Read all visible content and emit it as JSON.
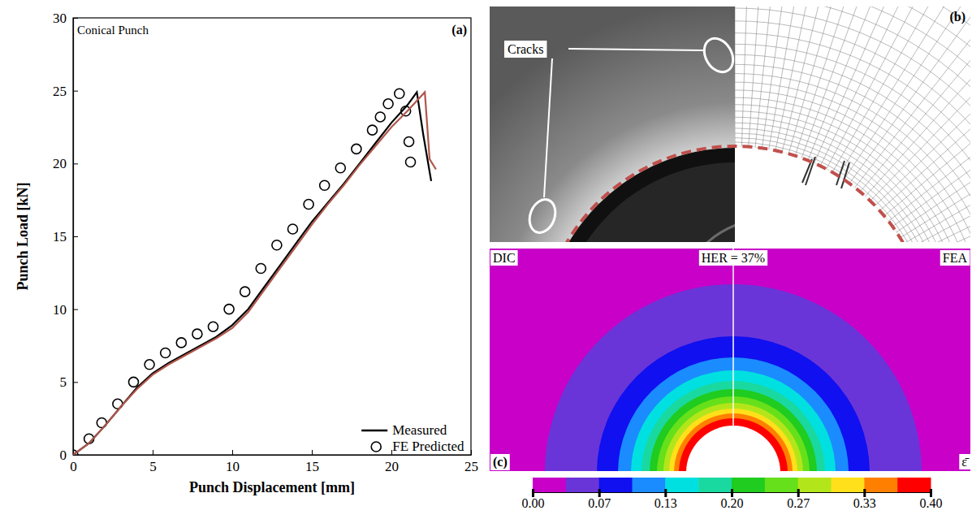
{
  "chart_data": [
    {
      "type": "line",
      "panel_label": "(a)",
      "title": "Conical Punch",
      "x_label": "Punch Displacement [mm]",
      "y_label": "Punch Load [kN]",
      "xlim": [
        0,
        25
      ],
      "xticks": [
        0,
        5,
        10,
        15,
        20,
        25
      ],
      "ylim": [
        0,
        30
      ],
      "yticks": [
        0,
        5,
        10,
        15,
        20,
        25,
        30
      ],
      "legend": "lower right",
      "series": [
        {
          "name": "Measured",
          "color": "#000000",
          "line_style": "solid",
          "x": [
            0,
            1,
            2,
            3,
            4,
            5,
            6,
            7,
            8,
            9,
            10,
            11,
            12,
            13,
            14,
            15,
            16,
            17,
            18,
            19,
            20,
            21,
            21.6,
            22,
            22.5
          ],
          "values": [
            0,
            0.8,
            2,
            3.3,
            4.6,
            5.6,
            6.3,
            6.9,
            7.5,
            8.1,
            8.9,
            10,
            11.5,
            13,
            14.5,
            16,
            17.3,
            18.6,
            20,
            21.4,
            22.8,
            24,
            24.9,
            22,
            18.8
          ]
        },
        {
          "name": "FE Predicted",
          "type": "scatter",
          "marker": "circle",
          "color": "#000000",
          "x": [
            0,
            1,
            1.8,
            2.8,
            3.8,
            4.8,
            5.8,
            6.8,
            7.8,
            8.8,
            9.8,
            10.8,
            11.8,
            12.8,
            13.8,
            14.8,
            15.8,
            16.8,
            17.8,
            18.8,
            19.3,
            19.8,
            20.5,
            20.9,
            21.1,
            21.2
          ],
          "values": [
            0,
            1.1,
            2.2,
            3.5,
            5,
            6.2,
            7,
            7.7,
            8.3,
            8.8,
            10,
            11.2,
            12.8,
            14.4,
            15.5,
            17.2,
            18.5,
            19.7,
            21,
            22.3,
            23.2,
            24.1,
            24.8,
            23.6,
            21.5,
            20.1
          ]
        },
        {
          "color": "#b0564c",
          "line_style": "solid",
          "x": [
            0,
            1,
            2,
            3,
            4,
            5,
            6,
            7,
            8,
            9,
            10,
            11,
            12,
            13,
            14,
            15,
            16,
            17,
            18,
            19,
            20,
            21,
            22.1,
            22.4,
            22.8
          ],
          "values": [
            0,
            0.8,
            2,
            3.3,
            4.5,
            5.5,
            6.2,
            6.8,
            7.4,
            8,
            8.7,
            9.8,
            11.3,
            12.8,
            14.3,
            15.8,
            17.2,
            18.5,
            19.9,
            21.2,
            22.5,
            23.6,
            24.9,
            20.3,
            19.6
          ]
        }
      ]
    },
    {
      "type": "image",
      "panel_label": "(b)",
      "annotation": "Cracks"
    },
    {
      "type": "contour",
      "panel_label": "(c)",
      "title": "HER = 37%",
      "labels": [
        "DIC",
        "FEA"
      ],
      "colorbar_label": "ε̄",
      "colorbar_range": [
        0,
        0.4
      ],
      "colorbar_ticks": [
        {
          "value": 0,
          "label": "0.00"
        },
        {
          "value": 0.0667,
          "label": "0.07"
        },
        {
          "value": 0.1333,
          "label": "0.13"
        },
        {
          "value": 0.2,
          "label": "0.20"
        },
        {
          "value": 0.2667,
          "label": "0.27"
        },
        {
          "value": 0.3333,
          "label": "0.33"
        },
        {
          "value": 0.4,
          "label": "0.40"
        }
      ],
      "colors": [
        "#c800c8",
        "#6a35d8",
        "#1010f0",
        "#1a8cff",
        "#00e0e0",
        "#19d9a0",
        "#1fcc1f",
        "#66e01a",
        "#b3e61a",
        "#ffe01a",
        "#ff8000",
        "#ff0000"
      ]
    }
  ]
}
